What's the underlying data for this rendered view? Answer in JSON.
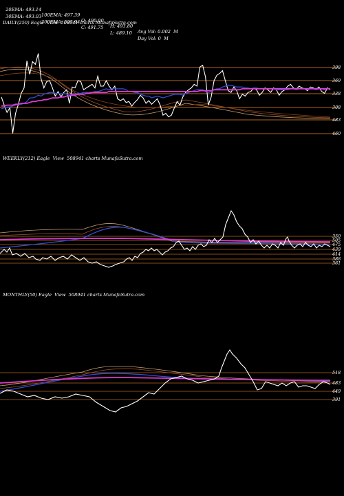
{
  "header": {
    "row1": [
      "20EMA: 493.14",
      "100EMA: 497.39",
      "O: 490.00",
      "H: 493.80",
      "Avg Vol: 0.002  M"
    ],
    "row2": [
      "30EMA: 493.03",
      "200EMA: 505.94",
      "C: 491.75",
      "L: 489.10",
      "Day Vol: 0  M"
    ]
  },
  "colors": {
    "background": "#000000",
    "price": "#ffffff",
    "ema_short": "#2f4fd8",
    "ema_long": "#e03ad0",
    "ema_other": "#c8a070",
    "ema_brown": "#a0522d",
    "level_line": "#b5651d"
  },
  "chart_data": [
    {
      "type": "line",
      "title": "DAILY(250) Eagle  View  508941 charts MunafaSutra.com",
      "ylim": [
        455,
        405
      ],
      "level_ticks": [
        398,
        369,
        338,
        308,
        483,
        460
      ],
      "series": [
        {
          "color": "price",
          "values": [
            480,
            489,
            497,
            492,
            520,
            498,
            488,
            476,
            470,
            440,
            455,
            441,
            444,
            432,
            460,
            470,
            463,
            462,
            470,
            479,
            474,
            480,
            475,
            472,
            487,
            469,
            470,
            462,
            463,
            472,
            470,
            468,
            466,
            470,
            457,
            468,
            468,
            462,
            468,
            472,
            468,
            482,
            484,
            482,
            486,
            485,
            490,
            486,
            483,
            478,
            481,
            487,
            484,
            488,
            485,
            482,
            489,
            500,
            498,
            502,
            500,
            492,
            485,
            489,
            480,
            475,
            472,
            470,
            466,
            468,
            447,
            445,
            458,
            489,
            480,
            462,
            456,
            454,
            451,
            462,
            473,
            475,
            469,
            473,
            482,
            477,
            479,
            475,
            474,
            470,
            472,
            478,
            475,
            470,
            472,
            475,
            470,
            472,
            478,
            474,
            472,
            468,
            466,
            470,
            472,
            468,
            470,
            471,
            473,
            469,
            470,
            472,
            469,
            474,
            476,
            470,
            472
          ]
        },
        {
          "color": "ema_short",
          "values": [
            493,
            492,
            491,
            491,
            490,
            489,
            488,
            488,
            487,
            485,
            481,
            481,
            480,
            478,
            479,
            477,
            476,
            475,
            475,
            476,
            476,
            477,
            476,
            477,
            478,
            477,
            477,
            476,
            476,
            475,
            475,
            475,
            475,
            474,
            474,
            473,
            472,
            471,
            472,
            471,
            471,
            471,
            471,
            471,
            472,
            474,
            474,
            475,
            475,
            477,
            478,
            479,
            479,
            481,
            480,
            479,
            480,
            481,
            480,
            479,
            478,
            477,
            477,
            477,
            478,
            476,
            475,
            474,
            473,
            472,
            472,
            472,
            474,
            475,
            474,
            472,
            471,
            471,
            469,
            468,
            467,
            467,
            468,
            469,
            469,
            469,
            470,
            470,
            471,
            470,
            470,
            471,
            471,
            471,
            471,
            471,
            471,
            472,
            472,
            472,
            472,
            472,
            471,
            471,
            472,
            471,
            471,
            471,
            472,
            471,
            471,
            472,
            471,
            471,
            472,
            471,
            471
          ]
        },
        {
          "color": "ema_long",
          "values": [
            490,
            490,
            489,
            489,
            489,
            488,
            488,
            487,
            487,
            487,
            486,
            485,
            485,
            484,
            484,
            483,
            483,
            482,
            481,
            481,
            481,
            480,
            480,
            479,
            479,
            478,
            478,
            477,
            477,
            477,
            476,
            476,
            475,
            475,
            475,
            475,
            475,
            475,
            474,
            474,
            474,
            474,
            474,
            474,
            474,
            474,
            474,
            474,
            474,
            474,
            474,
            474,
            474,
            474,
            474,
            474,
            474,
            474,
            474,
            474,
            474,
            474,
            474,
            474,
            474,
            474,
            474,
            474,
            474,
            474,
            473,
            473,
            473,
            473,
            473,
            472,
            472,
            472,
            472,
            472,
            472,
            472,
            472,
            472,
            472,
            471,
            471,
            471,
            471,
            471,
            471,
            471,
            471,
            471,
            471,
            471,
            471,
            471,
            471,
            471,
            471,
            471,
            471,
            471,
            471,
            471,
            471,
            471,
            471,
            471,
            471,
            471,
            471,
            471,
            471,
            471,
            471
          ]
        }
      ]
    },
    {
      "type": "line",
      "title": "WEEKLY(212) Eagle  View  508941 charts MunafaSutra.com",
      "level_ticks": [
        350,
        505,
        475,
        439,
        414,
        388,
        361
      ]
    },
    {
      "type": "line",
      "title": "MONTHLY(50) Eagle  View  508941 charts MunafaSutra.com",
      "level_ticks": [
        518,
        483,
        449,
        391
      ]
    }
  ]
}
